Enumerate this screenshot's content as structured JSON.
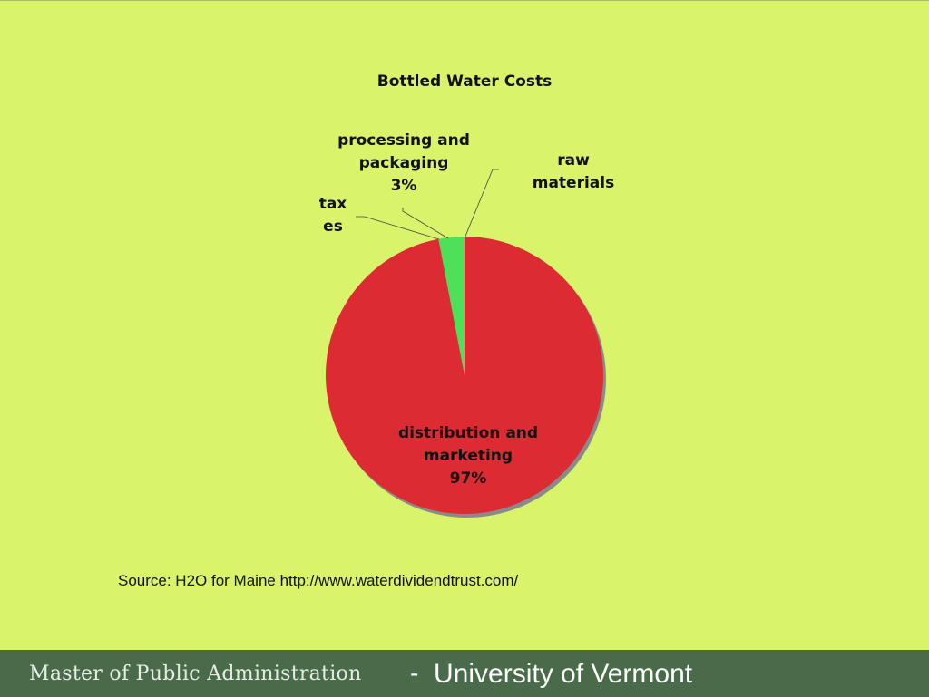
{
  "chart_data": {
    "type": "pie",
    "title": "Bottled Water Costs",
    "slices": [
      {
        "label_lines": [
          "distribution and",
          "marketing",
          "97%"
        ],
        "value": 97,
        "color": "#dc2b33"
      },
      {
        "label_lines": [
          "processing and",
          "packaging",
          "3%"
        ],
        "value": 3,
        "color": "#4fe05a"
      },
      {
        "label_lines": [
          "tax",
          "es"
        ],
        "value": 0,
        "color": "#4fe05a"
      },
      {
        "label_lines": [
          "raw",
          "materials"
        ],
        "value": 0,
        "color": "#4fe05a"
      }
    ],
    "legend": "none"
  },
  "source": "Source: H2O for Maine http://www.waterdividendtrust.com/",
  "footer": {
    "left": "Master of Public Administration",
    "separator": "-",
    "right": "University of Vermont"
  }
}
